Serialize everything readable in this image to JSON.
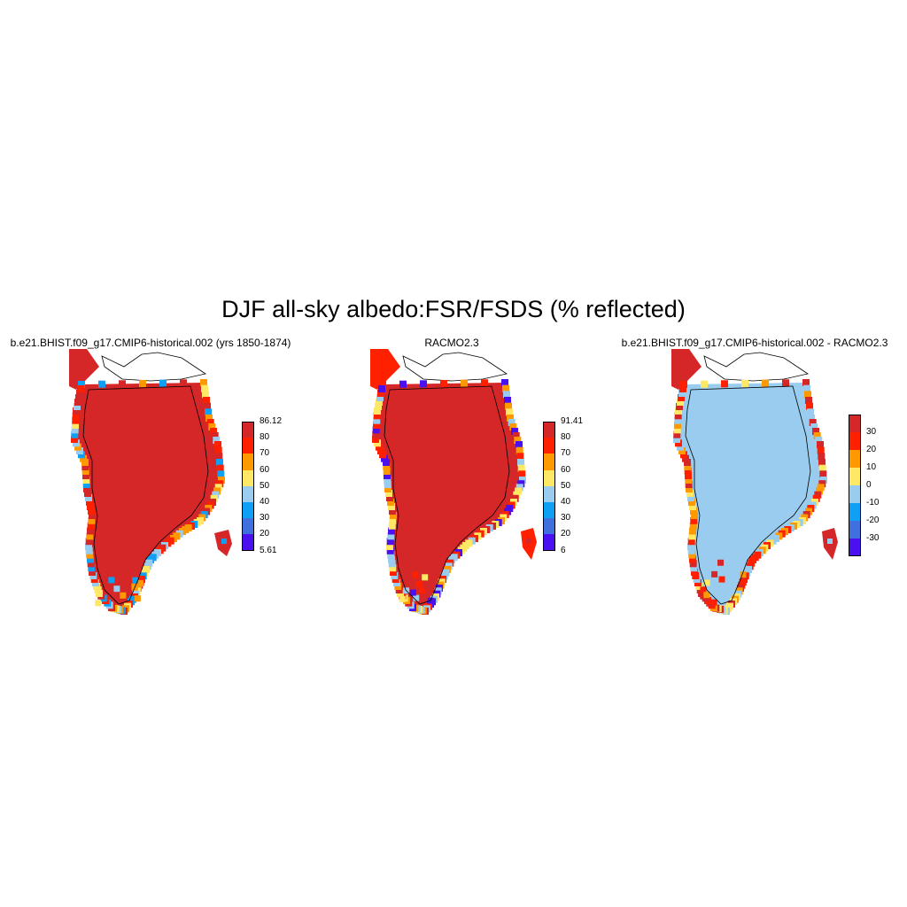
{
  "title": "DJF all-sky albedo:FSR/FSDS (% reflected)",
  "palette": {
    "darkred": "#d62728",
    "red": "#ff2000",
    "orange": "#ff9900",
    "yellow": "#ffe866",
    "lightblue": "#99ccee",
    "skyblue": "#0fa0f5",
    "blue": "#4070dd",
    "violet": "#4b10f0",
    "coast": "#000000"
  },
  "panels": [
    {
      "title": "b.e21.BHIST.f09_g17.CMIP6-historical.002 (yrs 1850-1874)",
      "fill": "darkred",
      "rim": [
        "darkred",
        "red",
        "orange",
        "yellow",
        "lightblue",
        "skyblue"
      ],
      "colorbar": {
        "colors": [
          "darkred",
          "red",
          "orange",
          "yellow",
          "lightblue",
          "skyblue",
          "blue",
          "violet"
        ],
        "labels": [
          "86.12",
          "80",
          "70",
          "60",
          "50",
          "40",
          "30",
          "20",
          "5.61"
        ]
      }
    },
    {
      "title": "RACMO2.3",
      "fill": "darkred",
      "rim": [
        "red",
        "orange",
        "yellow",
        "lightblue",
        "violet",
        "darkred"
      ],
      "colorbar": {
        "colors": [
          "darkred",
          "red",
          "orange",
          "yellow",
          "lightblue",
          "skyblue",
          "blue",
          "violet"
        ],
        "labels": [
          "91.41",
          "80",
          "70",
          "60",
          "50",
          "40",
          "30",
          "20",
          "6"
        ]
      }
    },
    {
      "title": "b.e21.BHIST.f09_g17.CMIP6-historical.002 - RACMO2.3",
      "fill": "lightblue",
      "rim": [
        "darkred",
        "red",
        "orange",
        "yellow",
        "lightblue"
      ],
      "colorbar": {
        "colors": [
          "darkred",
          "red",
          "orange",
          "yellow",
          "lightblue",
          "skyblue",
          "blue",
          "violet"
        ],
        "labels": [
          "30",
          "20",
          "10",
          "0",
          "-10",
          "-20",
          "-30"
        ]
      }
    }
  ]
}
